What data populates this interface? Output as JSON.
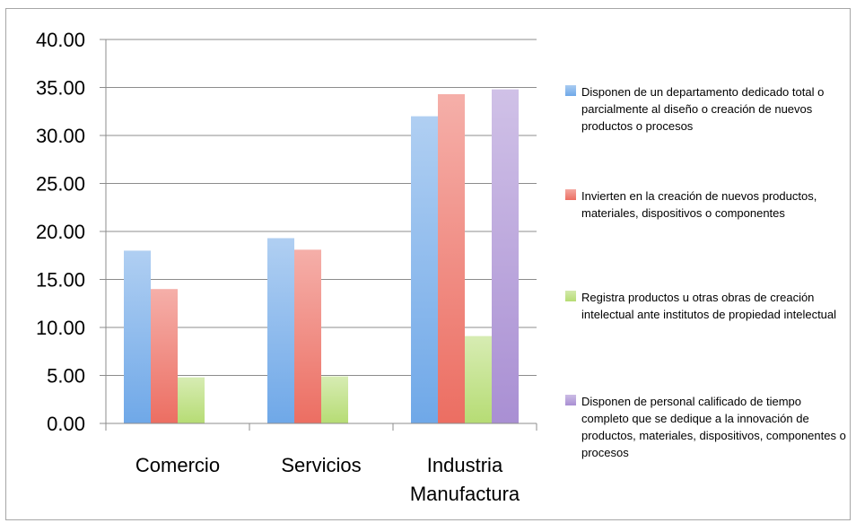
{
  "chart_data": {
    "type": "bar",
    "title": "",
    "xlabel": "",
    "ylabel": "",
    "ylim": [
      0,
      40
    ],
    "yticks": [
      "0.00",
      "5.00",
      "10.00",
      "15.00",
      "20.00",
      "25.00",
      "30.00",
      "35.00",
      "40.00"
    ],
    "grid": true,
    "legend_position": "right",
    "categories": [
      [
        "Comercio"
      ],
      [
        "Servicios"
      ],
      [
        "Industria",
        "Manufactura"
      ]
    ],
    "series": [
      {
        "name": "Disponen de un departamento dedicado total o parcialmente al diseño o creación de nuevos productos o procesos",
        "color": "#6fa8e8",
        "values": [
          18.0,
          19.3,
          32.0
        ]
      },
      {
        "name": "Invierten en la creación de nuevos productos, materiales, dispositivos o componentes",
        "color": "#ec6e62",
        "values": [
          14.0,
          18.1,
          34.3
        ]
      },
      {
        "name": "Registra productos u otras obras de creación intelectual ante institutos de propiedad intelectual",
        "color": "#b6dc74",
        "values": [
          4.8,
          4.9,
          9.1
        ]
      },
      {
        "name": "Disponen de personal calificado de tiempo completo que se dedique a la innovación de productos, materiales, dispositivos, componentes o procesos",
        "color": "#a98fd3",
        "values": [
          null,
          null,
          34.8
        ]
      }
    ]
  }
}
